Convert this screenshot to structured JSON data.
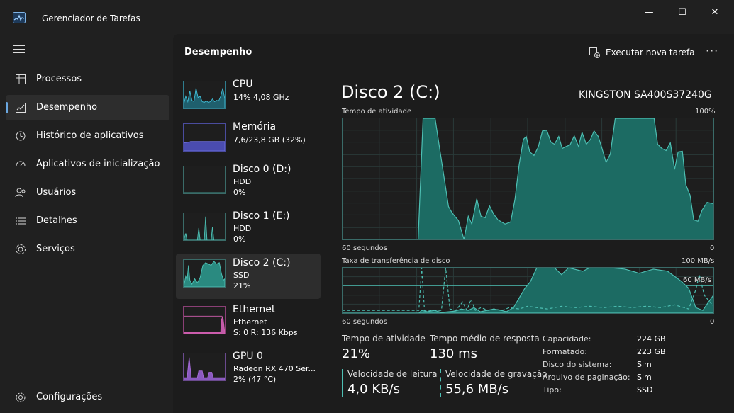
{
  "app": {
    "title": "Gerenciador de Tarefas"
  },
  "window_controls": {
    "minimize": "—",
    "maximize": "☐",
    "close": "✕"
  },
  "sidebar": {
    "items": [
      {
        "label": "Processos",
        "icon": "processes-icon"
      },
      {
        "label": "Desempenho",
        "icon": "performance-icon"
      },
      {
        "label": "Histórico de aplicativos",
        "icon": "app-history-icon"
      },
      {
        "label": "Aplicativos de inicialização",
        "icon": "startup-apps-icon"
      },
      {
        "label": "Usuários",
        "icon": "users-icon"
      },
      {
        "label": "Detalhes",
        "icon": "details-icon"
      },
      {
        "label": "Serviços",
        "icon": "services-icon"
      }
    ],
    "settings_label": "Configurações"
  },
  "header": {
    "title": "Desempenho",
    "run_task_label": "Executar nova tarefa",
    "more_label": "···"
  },
  "devices": [
    {
      "name": "CPU",
      "sub1": "14%  4,08 GHz",
      "sub2": "",
      "sub3": ""
    },
    {
      "name": "Memória",
      "sub1": "7,6/23,8 GB (32%)",
      "sub2": "",
      "sub3": ""
    },
    {
      "name": "Disco 0 (D:)",
      "sub1": "HDD",
      "sub2": "0%",
      "sub3": ""
    },
    {
      "name": "Disco 1 (E:)",
      "sub1": "HDD",
      "sub2": "0%",
      "sub3": ""
    },
    {
      "name": "Disco 2 (C:)",
      "sub1": "SSD",
      "sub2": "21%",
      "sub3": ""
    },
    {
      "name": "Ethernet",
      "sub1": "Ethernet",
      "sub2": "S: 0 R: 136 Kbps",
      "sub3": ""
    },
    {
      "name": "GPU 0",
      "sub1": "Radeon RX 470 Ser...",
      "sub2": "2%  (47 °C)",
      "sub3": ""
    }
  ],
  "detail": {
    "title": "Disco 2 (C:)",
    "model": "KINGSTON SA400S37240G",
    "graph1": {
      "label": "Tempo de atividade",
      "max_label": "100%",
      "time_label": "60 segundos",
      "min_label": "0"
    },
    "graph2": {
      "label": "Taxa de transferência de disco",
      "max_label": "100 MB/s",
      "mid_label": "60 MB/s",
      "time_label": "60 segundos",
      "min_label": "0"
    },
    "stats": {
      "active_time_label": "Tempo de atividade",
      "active_time_value": "21%",
      "response_label": "Tempo médio de resposta",
      "response_value": "130 ms",
      "read_label": "Velocidade de leitura",
      "read_value": "4,0 KB/s",
      "write_label": "Velocidade de gravação",
      "write_value": "55,6 MB/s"
    },
    "properties": [
      {
        "label": "Capacidade:",
        "value": "224 GB"
      },
      {
        "label": "Formatado:",
        "value": "223 GB"
      },
      {
        "label": "Disco do sistema:",
        "value": "Sim"
      },
      {
        "label": "Arquivo de paginação:",
        "value": "Sim"
      },
      {
        "label": "Tipo:",
        "value": "SSD"
      }
    ]
  },
  "colors": {
    "disk_accent": "#4dbfb3",
    "memory_accent": "#6a6cd8",
    "ethernet_accent": "#d35fb0",
    "gpu_accent": "#a56ad8",
    "cpu_accent": "#3fb8d0"
  }
}
